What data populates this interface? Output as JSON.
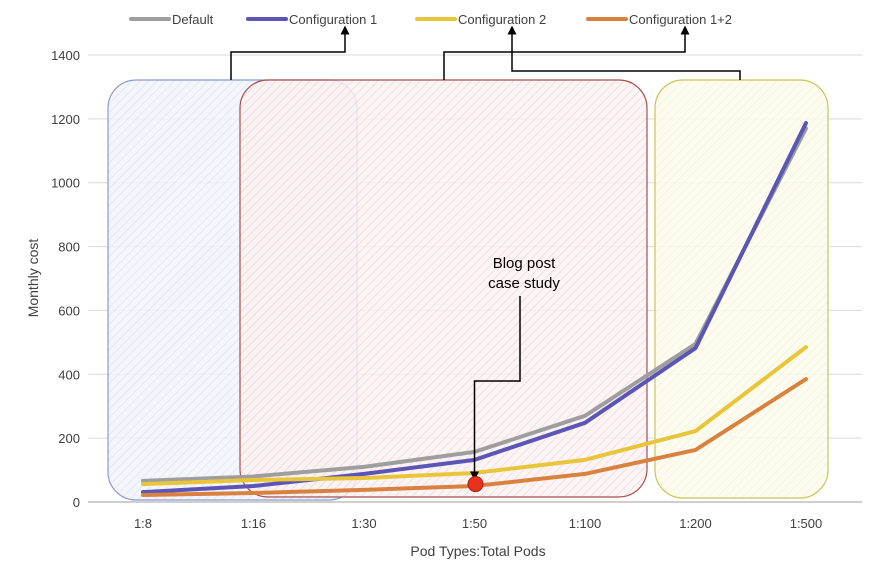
{
  "chart_data": {
    "type": "line",
    "title": "",
    "xlabel": "Pod Types:Total Pods",
    "ylabel": "Monthly cost",
    "categories": [
      "1:8",
      "1:16",
      "1:30",
      "1:50",
      "1:100",
      "1:200",
      "1:500"
    ],
    "ylim": [
      0,
      1400
    ],
    "yticks": [
      0,
      200,
      400,
      600,
      800,
      1000,
      1200,
      1400
    ],
    "grid": true,
    "legend_position": "top",
    "series": [
      {
        "name": "Default",
        "color": "#9e9e9e",
        "values": [
          66,
          80,
          110,
          157,
          270,
          495,
          1170
        ]
      },
      {
        "name": "Configuration 1",
        "color": "#5b55b5",
        "values": [
          31,
          50,
          88,
          132,
          248,
          482,
          1187
        ]
      },
      {
        "name": "Configuration 2",
        "color": "#e9c53a",
        "values": [
          56,
          69,
          75,
          91,
          132,
          222,
          485
        ]
      },
      {
        "name": "Configuration 1+2",
        "color": "#d9823f",
        "values": [
          22,
          28,
          38,
          50,
          88,
          163,
          385
        ]
      }
    ],
    "annotation": {
      "text_line1": "Blog post",
      "text_line2": "case study",
      "category": "1:50",
      "value": 50,
      "marker_color": "#e8321e"
    },
    "highlight_regions": [
      {
        "from": "1:8",
        "to": "1:16",
        "color": "#8a9bd0"
      },
      {
        "from": "1:16",
        "to": "1:100",
        "color": "#a5504f"
      },
      {
        "from": "1:200",
        "to": "1:500",
        "color": "#cfc257"
      }
    ]
  }
}
